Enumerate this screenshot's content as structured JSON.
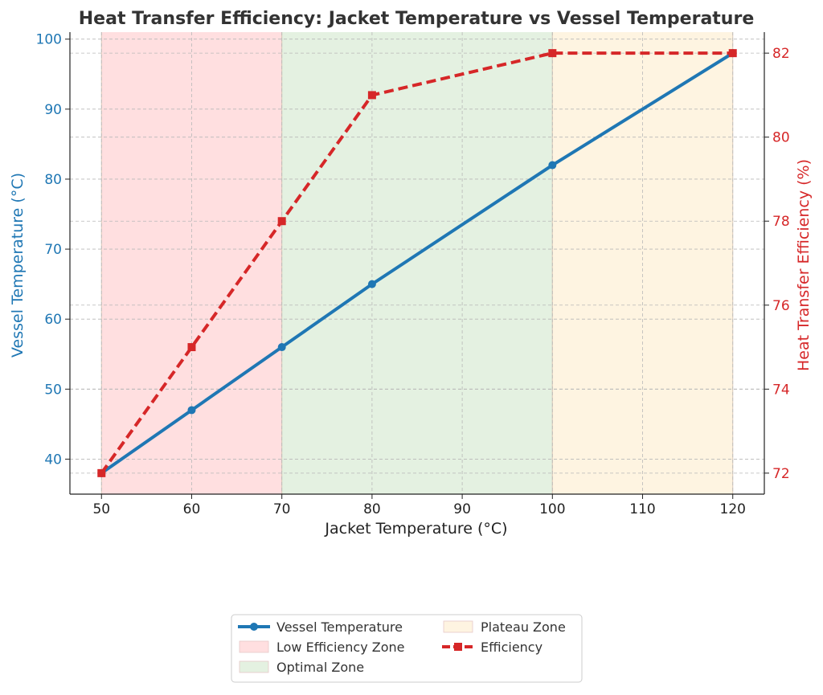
{
  "chart_data": {
    "type": "line",
    "title": "Heat Transfer Efficiency: Jacket Temperature vs Vessel Temperature",
    "xlabel": "Jacket Temperature (°C)",
    "ylabel_left": "Vessel Temperature (°C)",
    "ylabel_right": "Heat Transfer Efficiency (%)",
    "x": [
      50,
      60,
      70,
      80,
      100,
      120
    ],
    "x_ticks": [
      50,
      60,
      70,
      80,
      90,
      100,
      110,
      120
    ],
    "y_left_ticks": [
      40,
      50,
      60,
      70,
      80,
      90,
      100
    ],
    "y_right_ticks": [
      72,
      74,
      76,
      78,
      80,
      82
    ],
    "xlim": [
      46.5,
      123.5
    ],
    "ylim_left": [
      35,
      101
    ],
    "ylim_right": [
      71.5,
      82.5
    ],
    "grid": true,
    "legend_position": "bottom-center",
    "series": [
      {
        "name": "Vessel Temperature",
        "axis": "left",
        "values": [
          38,
          47,
          56,
          65,
          82,
          98
        ],
        "color": "#1f77b4",
        "style": "solid",
        "marker": "circle"
      },
      {
        "name": "Efficiency",
        "axis": "right",
        "values": [
          72,
          75,
          78,
          81,
          82,
          82
        ],
        "color": "#d62728",
        "style": "dashed",
        "marker": "square"
      }
    ],
    "zones": [
      {
        "name": "Low Efficiency Zone",
        "x_start": 50,
        "x_end": 70,
        "color": "#ffdfe0"
      },
      {
        "name": "Optimal Zone",
        "x_start": 70,
        "x_end": 100,
        "color": "#e4f1e1"
      },
      {
        "name": "Plateau Zone",
        "x_start": 100,
        "x_end": 120,
        "color": "#fef4e1"
      }
    ],
    "legend_order": [
      "Vessel Temperature",
      "Low Efficiency Zone",
      "Optimal Zone",
      "Plateau Zone",
      "Efficiency"
    ]
  }
}
